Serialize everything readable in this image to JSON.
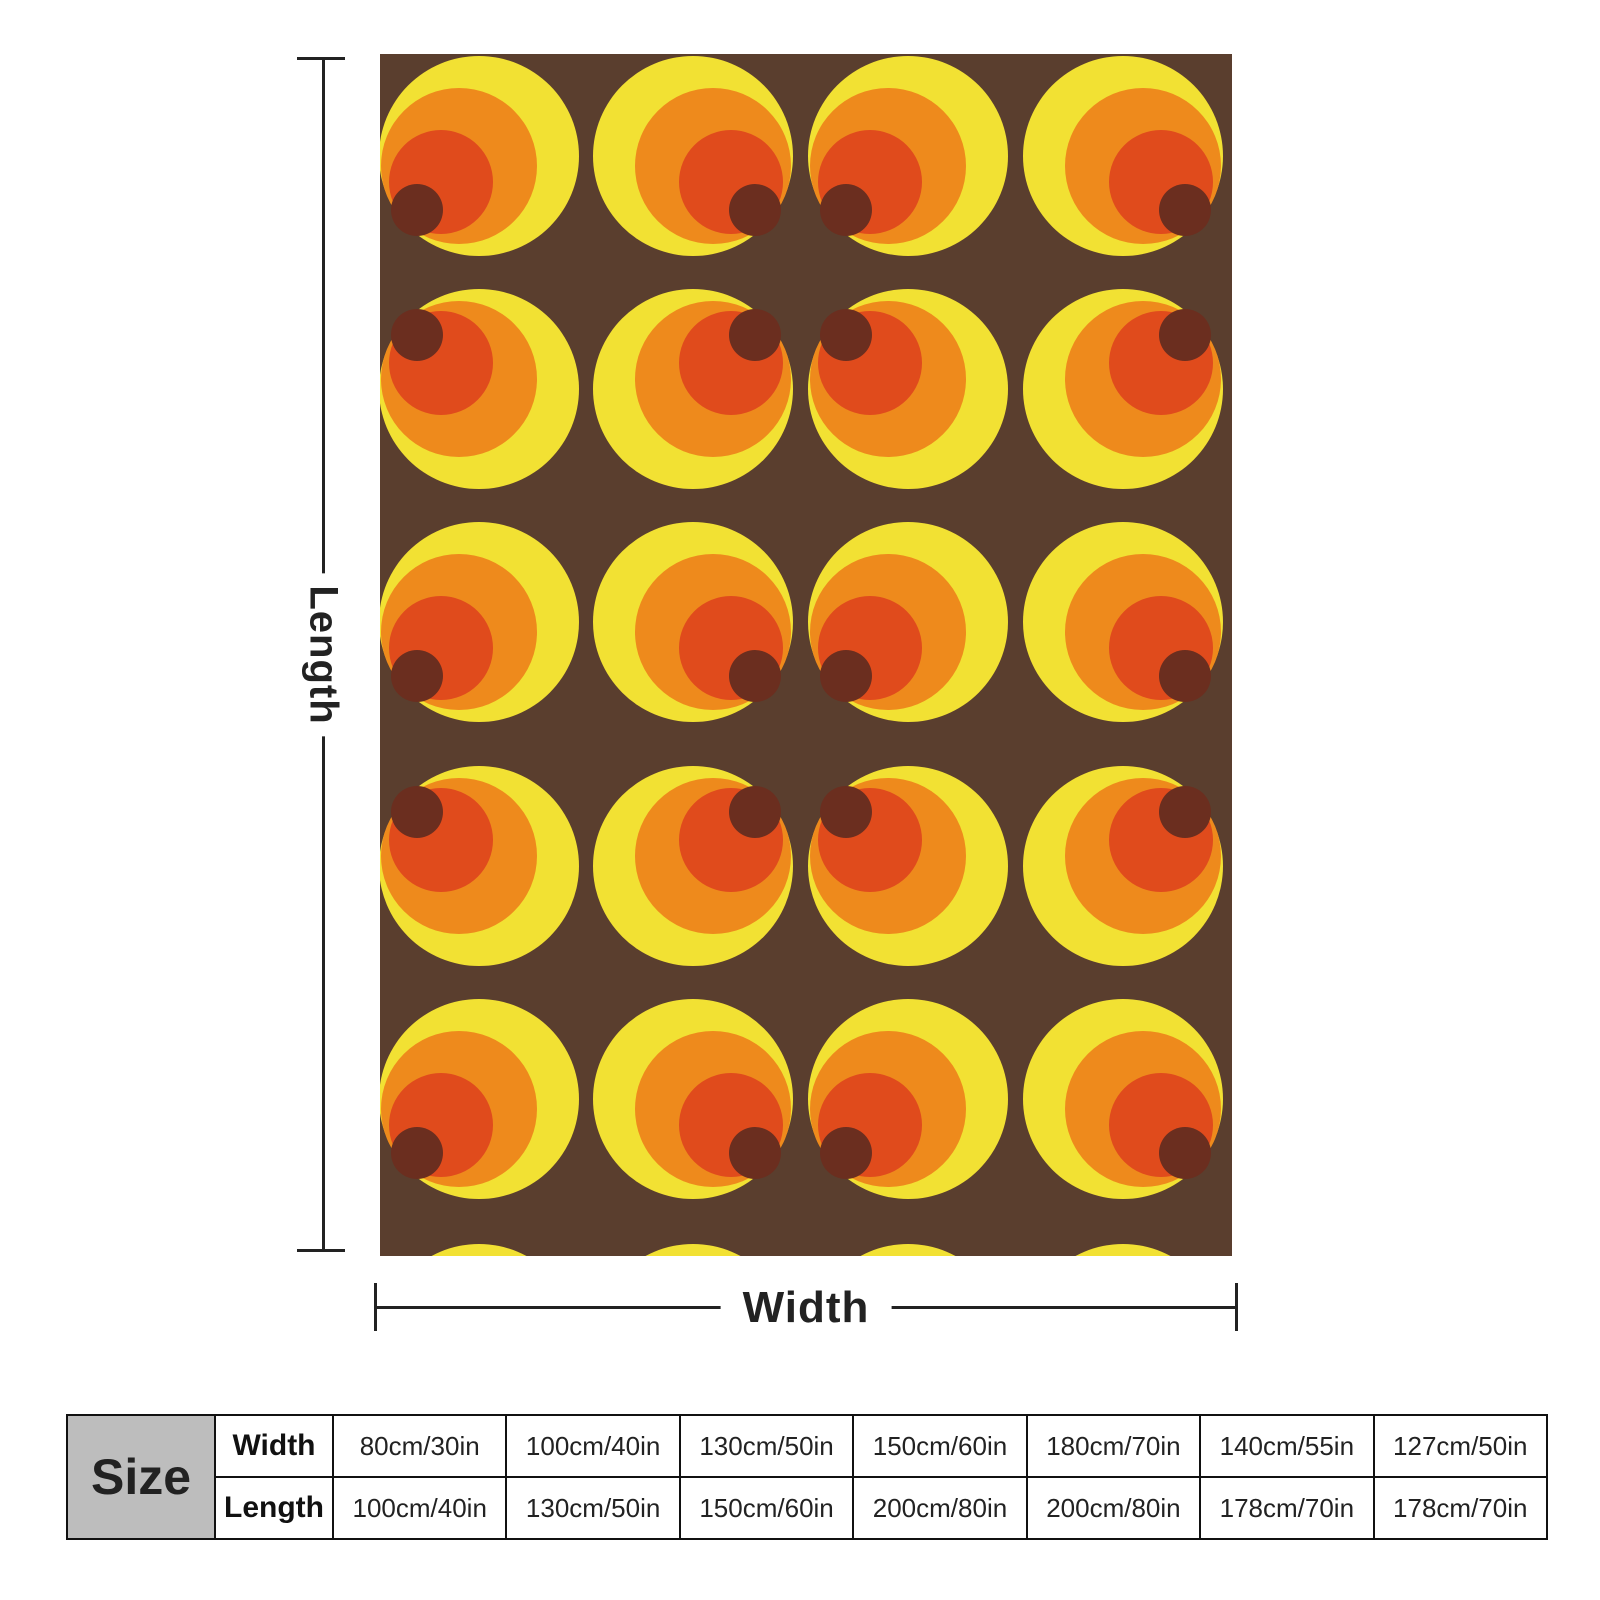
{
  "dimension_labels": {
    "length": "Length",
    "width": "Width"
  },
  "pattern": {
    "colors": {
      "background": "#5a3e2e",
      "outer": "#f2e133",
      "second": "#ee8a1c",
      "third": "#e04b1c",
      "center": "#6b2e1f"
    }
  },
  "size_table": {
    "header": "Size",
    "row_labels": [
      "Width",
      "Length"
    ],
    "widths": [
      "80cm/30in",
      "100cm/40in",
      "130cm/50in",
      "150cm/60in",
      "180cm/70in",
      "140cm/55in",
      "127cm/50in"
    ],
    "lengths": [
      "100cm/40in",
      "130cm/50in",
      "150cm/60in",
      "200cm/80in",
      "200cm/80in",
      "178cm/70in",
      "178cm/70in"
    ]
  }
}
